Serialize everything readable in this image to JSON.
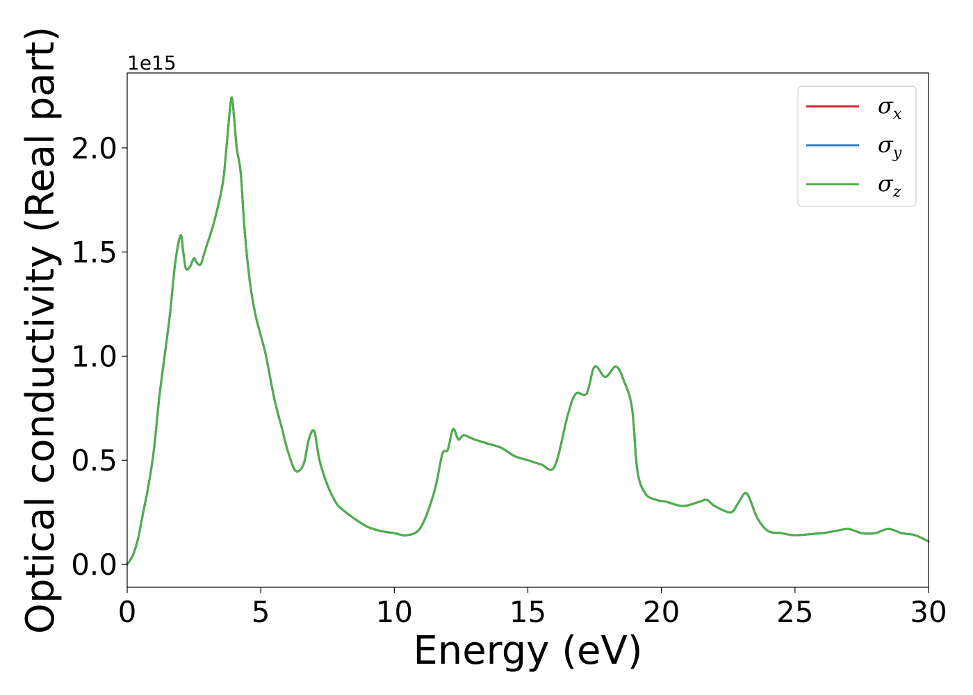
{
  "chart_data": {
    "type": "line",
    "xlabel": "Energy (eV)",
    "ylabel": "Optical conductivity (Real part)",
    "y_offset_label": "1e15",
    "xlim": [
      0,
      30
    ],
    "ylim": [
      -0.11,
      2.36
    ],
    "y_scale_factor": 1000000000000000.0,
    "x_ticks": [
      0,
      5,
      10,
      15,
      20,
      25,
      30
    ],
    "x_tick_labels": [
      "0",
      "5",
      "10",
      "15",
      "20",
      "25",
      "30"
    ],
    "y_ticks": [
      0.0,
      0.5,
      1.0,
      1.5,
      2.0
    ],
    "y_tick_labels": [
      "0.0",
      "0.5",
      "1.0",
      "1.5",
      "2.0"
    ],
    "grid": false,
    "legend_position": "top-right",
    "legend": [
      {
        "symbol": "σ",
        "subscript": "x",
        "color": "#d62728"
      },
      {
        "symbol": "σ",
        "subscript": "y",
        "color": "#377eb8"
      },
      {
        "symbol": "σ",
        "subscript": "z",
        "color": "#4daf4a"
      }
    ],
    "x": [
      0,
      0.2,
      0.4,
      0.6,
      0.8,
      1.0,
      1.2,
      1.4,
      1.6,
      1.8,
      2.0,
      2.1,
      2.2,
      2.35,
      2.5,
      2.6,
      2.75,
      2.9,
      3.0,
      3.2,
      3.4,
      3.6,
      3.75,
      3.9,
      4.0,
      4.1,
      4.25,
      4.4,
      4.6,
      4.8,
      5.0,
      5.2,
      5.5,
      5.8,
      6.0,
      6.3,
      6.6,
      6.8,
      7.0,
      7.2,
      7.5,
      7.8,
      8.0,
      8.5,
      9.0,
      9.5,
      10.0,
      10.5,
      11.0,
      11.5,
      11.8,
      12.0,
      12.2,
      12.4,
      12.6,
      13.0,
      13.5,
      14.0,
      14.5,
      15.0,
      15.5,
      16.0,
      16.5,
      16.8,
      17.2,
      17.5,
      17.9,
      18.3,
      18.6,
      18.9,
      19.1,
      19.4,
      19.8,
      20.2,
      20.8,
      21.4,
      21.7,
      22.0,
      22.6,
      22.9,
      23.2,
      23.6,
      24.0,
      24.5,
      25.0,
      26.0,
      26.5,
      27.0,
      27.5,
      28.0,
      28.5,
      29.0,
      29.5,
      30.0
    ],
    "series": [
      {
        "name": "σx",
        "color": "#d62728",
        "y": [
          0.0,
          0.04,
          0.12,
          0.25,
          0.38,
          0.55,
          0.8,
          1.0,
          1.2,
          1.45,
          1.58,
          1.5,
          1.42,
          1.43,
          1.47,
          1.45,
          1.44,
          1.5,
          1.54,
          1.62,
          1.72,
          1.85,
          2.05,
          2.24,
          2.15,
          2.0,
          1.88,
          1.6,
          1.35,
          1.2,
          1.1,
          1.0,
          0.8,
          0.65,
          0.55,
          0.45,
          0.48,
          0.6,
          0.64,
          0.5,
          0.38,
          0.3,
          0.27,
          0.22,
          0.18,
          0.16,
          0.15,
          0.14,
          0.18,
          0.35,
          0.53,
          0.55,
          0.65,
          0.6,
          0.62,
          0.6,
          0.58,
          0.56,
          0.52,
          0.5,
          0.48,
          0.47,
          0.72,
          0.82,
          0.82,
          0.95,
          0.9,
          0.95,
          0.88,
          0.75,
          0.45,
          0.34,
          0.31,
          0.3,
          0.28,
          0.3,
          0.31,
          0.28,
          0.25,
          0.3,
          0.34,
          0.22,
          0.16,
          0.15,
          0.14,
          0.15,
          0.16,
          0.17,
          0.15,
          0.15,
          0.17,
          0.15,
          0.14,
          0.11
        ]
      },
      {
        "name": "σy",
        "color": "#377eb8",
        "y": [
          0.0,
          0.04,
          0.12,
          0.25,
          0.38,
          0.55,
          0.8,
          1.0,
          1.2,
          1.45,
          1.58,
          1.5,
          1.42,
          1.43,
          1.47,
          1.45,
          1.44,
          1.5,
          1.54,
          1.62,
          1.72,
          1.85,
          2.05,
          2.24,
          2.15,
          2.0,
          1.88,
          1.6,
          1.35,
          1.2,
          1.1,
          1.0,
          0.8,
          0.65,
          0.55,
          0.45,
          0.48,
          0.6,
          0.64,
          0.5,
          0.38,
          0.3,
          0.27,
          0.22,
          0.18,
          0.16,
          0.15,
          0.14,
          0.18,
          0.35,
          0.53,
          0.55,
          0.65,
          0.6,
          0.62,
          0.6,
          0.58,
          0.56,
          0.52,
          0.5,
          0.48,
          0.47,
          0.72,
          0.82,
          0.82,
          0.95,
          0.9,
          0.95,
          0.88,
          0.75,
          0.45,
          0.34,
          0.31,
          0.3,
          0.28,
          0.3,
          0.31,
          0.28,
          0.25,
          0.3,
          0.34,
          0.22,
          0.16,
          0.15,
          0.14,
          0.15,
          0.16,
          0.17,
          0.15,
          0.15,
          0.17,
          0.15,
          0.14,
          0.11
        ]
      },
      {
        "name": "σz",
        "color": "#4daf4a",
        "y": [
          0.0,
          0.04,
          0.12,
          0.25,
          0.38,
          0.55,
          0.8,
          1.0,
          1.2,
          1.45,
          1.58,
          1.5,
          1.42,
          1.43,
          1.47,
          1.45,
          1.44,
          1.5,
          1.54,
          1.62,
          1.72,
          1.85,
          2.05,
          2.24,
          2.15,
          2.0,
          1.88,
          1.6,
          1.35,
          1.2,
          1.1,
          1.0,
          0.8,
          0.65,
          0.55,
          0.45,
          0.48,
          0.6,
          0.64,
          0.5,
          0.38,
          0.3,
          0.27,
          0.22,
          0.18,
          0.16,
          0.15,
          0.14,
          0.18,
          0.35,
          0.53,
          0.55,
          0.65,
          0.6,
          0.62,
          0.6,
          0.58,
          0.56,
          0.52,
          0.5,
          0.48,
          0.47,
          0.72,
          0.82,
          0.82,
          0.95,
          0.9,
          0.95,
          0.88,
          0.75,
          0.45,
          0.34,
          0.31,
          0.3,
          0.28,
          0.3,
          0.31,
          0.28,
          0.25,
          0.3,
          0.34,
          0.22,
          0.16,
          0.15,
          0.14,
          0.15,
          0.16,
          0.17,
          0.15,
          0.15,
          0.17,
          0.15,
          0.14,
          0.11
        ]
      }
    ]
  }
}
